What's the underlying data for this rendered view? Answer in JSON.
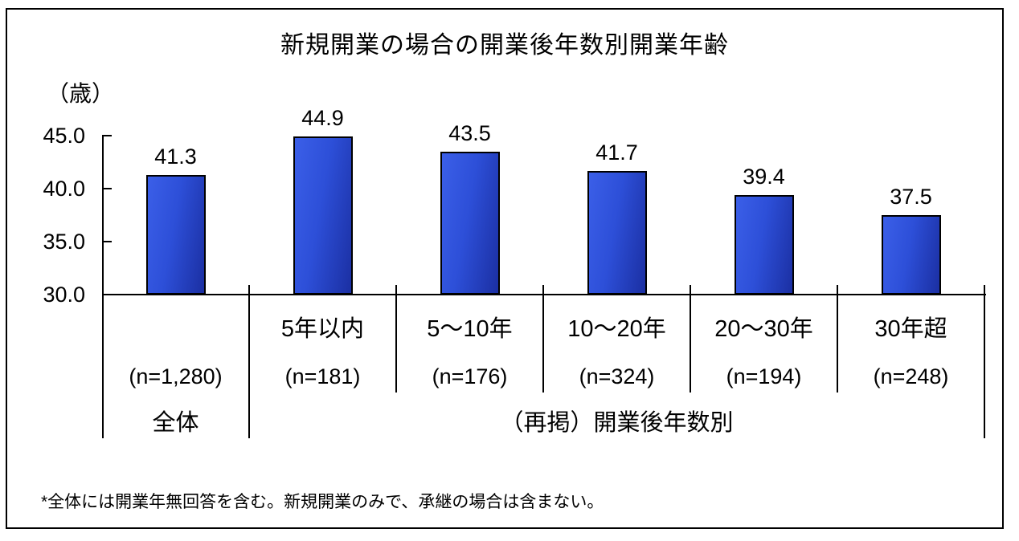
{
  "footnote": "*全体には開業年無回答を含む。新規開業のみで、承継の場合は含まない。",
  "chart_data": {
    "type": "bar",
    "title": "新規開業の場合の開業後年数別開業年齢",
    "ylabel": "（歳）",
    "xlabel": "",
    "categories": [
      "全体",
      "5年以内",
      "5～10年",
      "10～20年",
      "20～30年",
      "30年超"
    ],
    "n_labels": [
      "(n=1,280)",
      "(n=181)",
      "(n=176)",
      "(n=324)",
      "(n=194)",
      "(n=248)"
    ],
    "values": [
      41.3,
      44.9,
      43.5,
      41.7,
      39.4,
      37.5
    ],
    "value_labels": [
      "41.3",
      "44.9",
      "43.5",
      "41.7",
      "39.4",
      "37.5"
    ],
    "group_labels": [
      "全体",
      "（再掲）開業後年数別"
    ],
    "y_ticks": [
      {
        "value": 45,
        "label": "45.0"
      },
      {
        "value": 40,
        "label": "40.0"
      },
      {
        "value": 35,
        "label": "35.0"
      },
      {
        "value": 30,
        "label": "30.0"
      }
    ],
    "ylim": [
      30.0,
      45.0
    ],
    "grid": false,
    "legend": "none",
    "bar_colors": {
      "light": "#3b5fe8",
      "dark": "#1b2fa2",
      "border": "#000000"
    }
  }
}
